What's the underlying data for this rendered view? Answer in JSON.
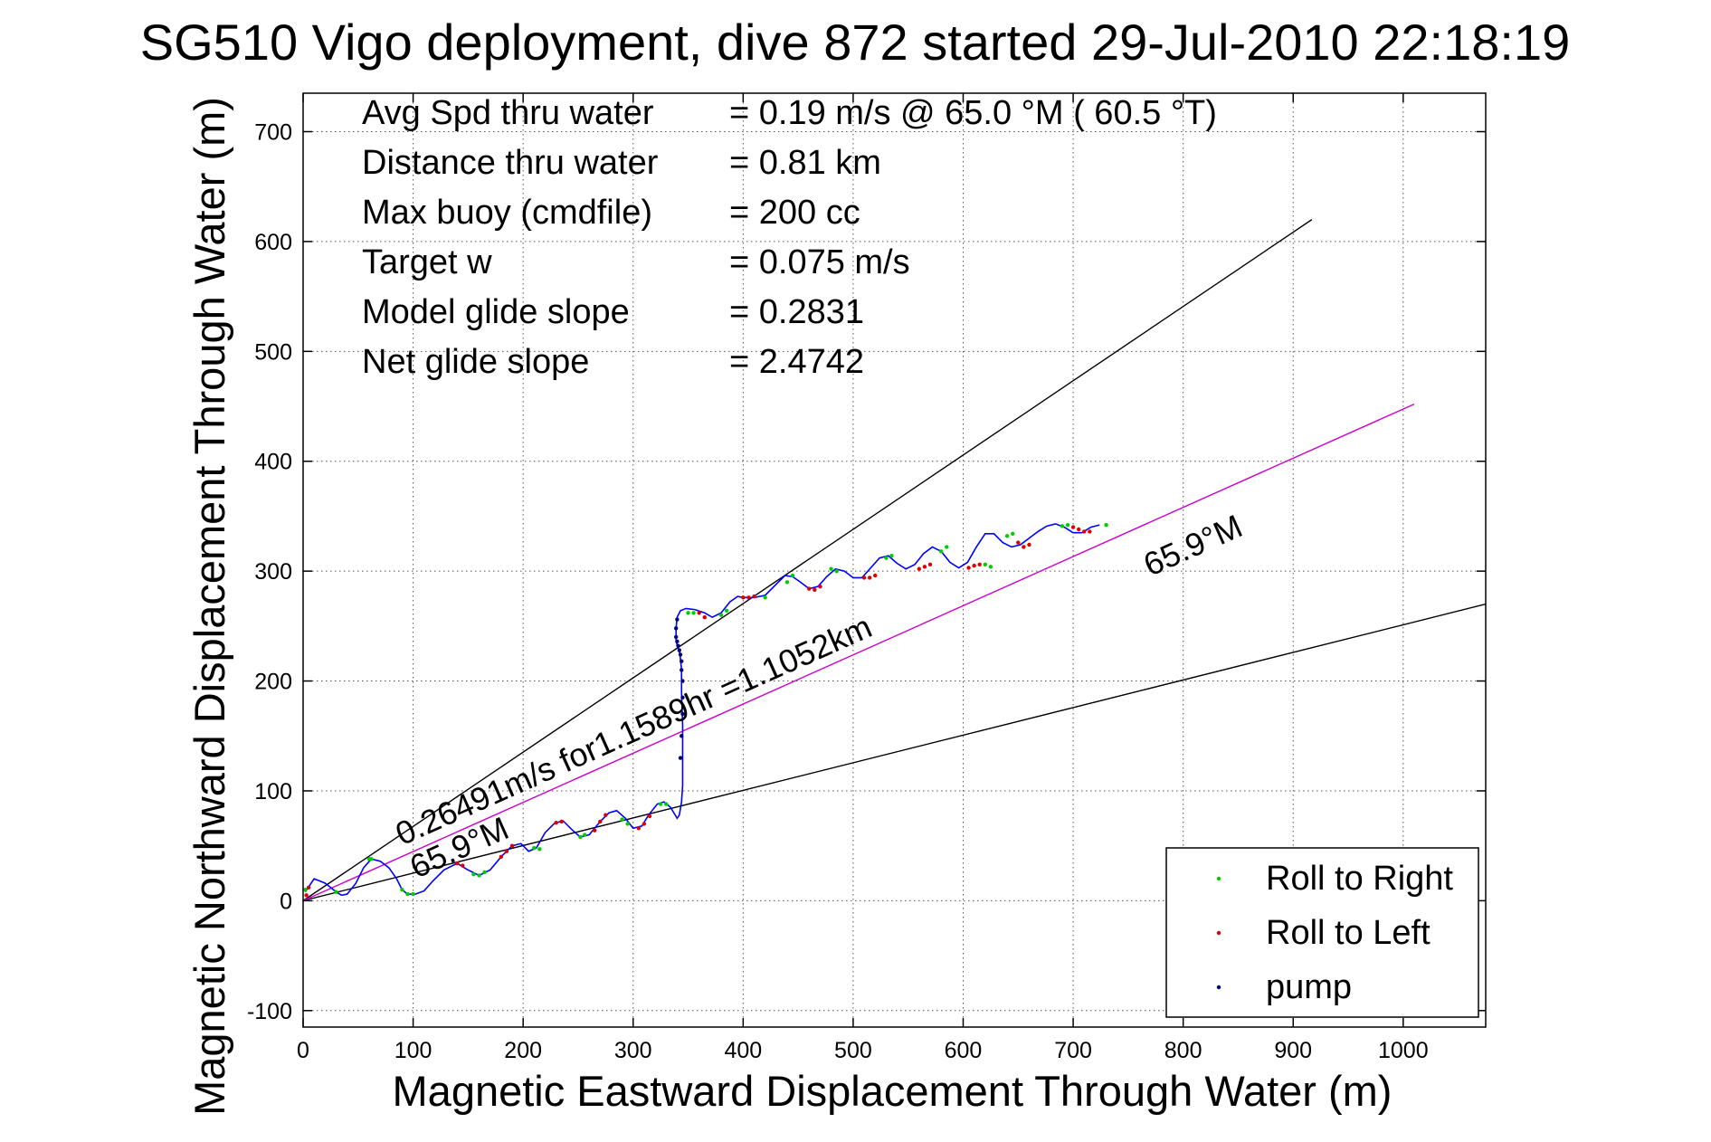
{
  "chart_data": {
    "type": "line",
    "title": "SG510 Vigo deployment, dive 872 started 29-Jul-2010 22:18:19",
    "xlabel": "Magnetic Eastward Displacement Through Water (m)",
    "ylabel": "Magnetic Northward Displacement Through Water (m)",
    "xlim": [
      0,
      1075
    ],
    "ylim": [
      -115,
      735
    ],
    "x_ticks": [
      0,
      100,
      200,
      300,
      400,
      500,
      600,
      700,
      800,
      900,
      1000
    ],
    "y_ticks": [
      -100,
      0,
      100,
      200,
      300,
      400,
      500,
      600,
      700
    ],
    "grid": true,
    "legend_position": "bottom-right",
    "legend": [
      "Roll to Right",
      "Roll to Left",
      "pump"
    ],
    "annotations": [
      {
        "label": "Avg Spd thru water",
        "value": "=  0.19 m/s @  65.0 °M ( 60.5 °T)"
      },
      {
        "label": "Distance thru water",
        "value": "=  0.81 km"
      },
      {
        "label": "Max buoy (cmdfile)",
        "value": "= 200 cc"
      },
      {
        "label": "Target w",
        "value": "= 0.075 m/s"
      },
      {
        "label": "Model glide slope",
        "value": "= 0.2831"
      },
      {
        "label": "Net glide slope",
        "value": "= 2.4742"
      }
    ],
    "rotated_labels": [
      {
        "text": "0.26491m/s for1.1589hr =1.1052km",
        "x": 90,
        "y": 50
      },
      {
        "text": "65.9°M",
        "x": 103,
        "y": 20
      },
      {
        "text": "65.9°M",
        "x": 770,
        "y": 295
      }
    ],
    "reference_lines": [
      {
        "name": "bound-upper",
        "color": "#000000",
        "x": [
          0,
          917
        ],
        "y": [
          0,
          620
        ]
      },
      {
        "name": "bound-lower",
        "color": "#000000",
        "x": [
          0,
          1075
        ],
        "y": [
          0,
          270
        ]
      },
      {
        "name": "course-65.9M",
        "color": "#cc00cc",
        "x": [
          0,
          1010
        ],
        "y": [
          0,
          452
        ]
      }
    ],
    "series": [
      {
        "color": "#0000ff",
        "x": [
          2,
          6,
          10,
          15,
          20,
          25,
          30,
          35,
          40,
          48,
          55,
          62,
          70,
          78,
          85,
          90,
          95,
          102,
          110,
          118,
          128,
          140,
          150,
          160,
          170,
          180,
          190,
          198,
          205,
          212,
          220,
          228,
          236,
          244,
          252,
          260,
          270,
          278,
          285,
          293,
          300,
          308,
          314,
          322,
          328,
          334,
          340,
          342,
          344,
          345,
          345,
          345,
          344,
          344,
          343,
          342,
          340,
          339,
          339,
          340,
          343,
          348,
          356,
          365,
          372,
          380,
          388,
          395,
          400,
          410,
          420,
          430,
          438,
          445,
          452,
          460,
          468,
          476,
          484,
          492,
          500,
          508,
          516,
          524,
          532,
          540,
          548,
          556,
          564,
          572,
          580,
          588,
          596,
          604,
          612,
          620,
          628,
          636,
          644,
          652,
          660,
          668,
          676,
          684,
          692,
          700,
          708,
          716,
          724
        ],
        "y": [
          8,
          14,
          20,
          18,
          16,
          12,
          8,
          5,
          6,
          16,
          30,
          38,
          36,
          30,
          20,
          10,
          6,
          6,
          9,
          18,
          28,
          34,
          28,
          23,
          28,
          40,
          50,
          52,
          45,
          48,
          62,
          70,
          73,
          65,
          58,
          60,
          72,
          80,
          82,
          75,
          66,
          68,
          78,
          88,
          90,
          85,
          75,
          78,
          90,
          105,
          130,
          160,
          190,
          210,
          220,
          228,
          232,
          238,
          248,
          258,
          264,
          266,
          265,
          262,
          258,
          262,
          272,
          277,
          276,
          276,
          278,
          288,
          296,
          295,
          290,
          284,
          286,
          295,
          302,
          300,
          294,
          294,
          303,
          312,
          314,
          307,
          302,
          306,
          316,
          322,
          318,
          308,
          303,
          308,
          322,
          334,
          334,
          326,
          322,
          324,
          330,
          336,
          341,
          343,
          340,
          335,
          335,
          340,
          342
        ]
      }
    ],
    "markers": {
      "roll_right": {
        "color": "#00cc00",
        "x": [
          2,
          30,
          60,
          62,
          90,
          95,
          100,
          155,
          160,
          165,
          210,
          215,
          252,
          256,
          290,
          295,
          325,
          330,
          350,
          355,
          380,
          385,
          420,
          440,
          445,
          480,
          485,
          530,
          535,
          580,
          585,
          620,
          625,
          640,
          645,
          690,
          695,
          730
        ],
        "y": [
          10,
          8,
          38,
          38,
          10,
          6,
          6,
          24,
          23,
          26,
          48,
          47,
          58,
          60,
          74,
          70,
          88,
          88,
          262,
          262,
          260,
          264,
          276,
          290,
          296,
          302,
          300,
          312,
          314,
          318,
          322,
          306,
          304,
          332,
          334,
          341,
          342,
          342
        ]
      },
      "roll_left": {
        "color": "#dd0000",
        "x": [
          3,
          5,
          140,
          145,
          180,
          185,
          190,
          230,
          235,
          265,
          270,
          275,
          305,
          310,
          315,
          360,
          365,
          400,
          405,
          410,
          460,
          465,
          470,
          510,
          515,
          520,
          560,
          565,
          570,
          605,
          610,
          615,
          650,
          655,
          660,
          700,
          705,
          710,
          715
        ],
        "y": [
          5,
          12,
          34,
          32,
          40,
          45,
          50,
          71,
          72,
          64,
          72,
          78,
          66,
          70,
          77,
          262,
          258,
          276,
          276,
          277,
          284,
          283,
          286,
          294,
          294,
          296,
          302,
          304,
          306,
          303,
          305,
          306,
          326,
          322,
          324,
          340,
          338,
          336,
          336
        ]
      },
      "pump": {
        "color": "#000080",
        "x": [
          343,
          344,
          345,
          345,
          345,
          344,
          344,
          343,
          342,
          341,
          340,
          339,
          339,
          340
        ],
        "y": [
          130,
          150,
          170,
          185,
          200,
          210,
          218,
          224,
          228,
          232,
          236,
          240,
          248,
          256
        ]
      }
    }
  }
}
